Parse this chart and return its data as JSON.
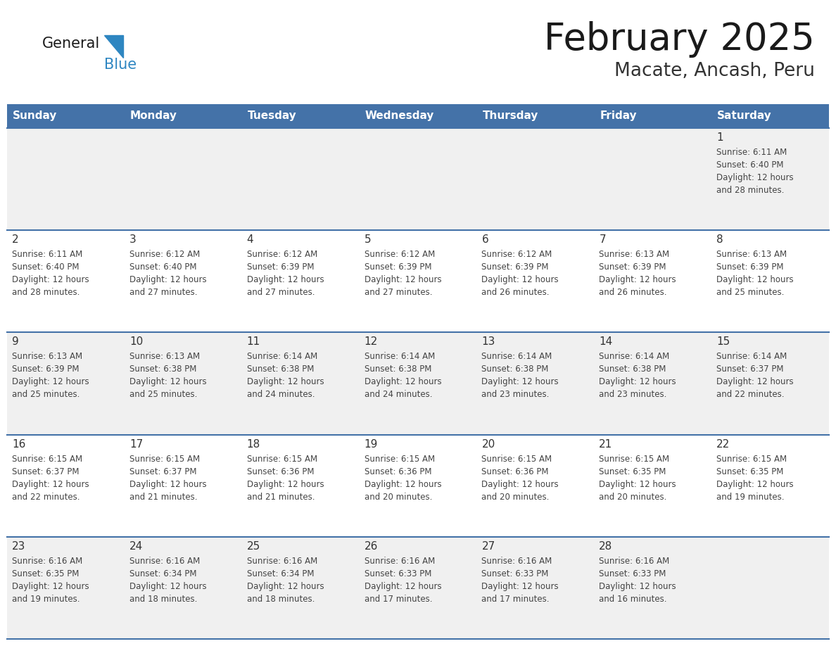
{
  "title": "February 2025",
  "subtitle": "Macate, Ancash, Peru",
  "header_bg": "#4472A8",
  "header_text": "#FFFFFF",
  "cell_bg_odd": "#F0F0F0",
  "cell_bg_even": "#FFFFFF",
  "cell_border": "#4472A8",
  "day_names": [
    "Sunday",
    "Monday",
    "Tuesday",
    "Wednesday",
    "Thursday",
    "Friday",
    "Saturday"
  ],
  "days": [
    {
      "day": 1,
      "col": 6,
      "row": 0,
      "sunrise": "6:11 AM",
      "sunset": "6:40 PM",
      "daylight": "28 minutes."
    },
    {
      "day": 2,
      "col": 0,
      "row": 1,
      "sunrise": "6:11 AM",
      "sunset": "6:40 PM",
      "daylight": "28 minutes."
    },
    {
      "day": 3,
      "col": 1,
      "row": 1,
      "sunrise": "6:12 AM",
      "sunset": "6:40 PM",
      "daylight": "27 minutes."
    },
    {
      "day": 4,
      "col": 2,
      "row": 1,
      "sunrise": "6:12 AM",
      "sunset": "6:39 PM",
      "daylight": "27 minutes."
    },
    {
      "day": 5,
      "col": 3,
      "row": 1,
      "sunrise": "6:12 AM",
      "sunset": "6:39 PM",
      "daylight": "27 minutes."
    },
    {
      "day": 6,
      "col": 4,
      "row": 1,
      "sunrise": "6:12 AM",
      "sunset": "6:39 PM",
      "daylight": "26 minutes."
    },
    {
      "day": 7,
      "col": 5,
      "row": 1,
      "sunrise": "6:13 AM",
      "sunset": "6:39 PM",
      "daylight": "26 minutes."
    },
    {
      "day": 8,
      "col": 6,
      "row": 1,
      "sunrise": "6:13 AM",
      "sunset": "6:39 PM",
      "daylight": "25 minutes."
    },
    {
      "day": 9,
      "col": 0,
      "row": 2,
      "sunrise": "6:13 AM",
      "sunset": "6:39 PM",
      "daylight": "25 minutes."
    },
    {
      "day": 10,
      "col": 1,
      "row": 2,
      "sunrise": "6:13 AM",
      "sunset": "6:38 PM",
      "daylight": "25 minutes."
    },
    {
      "day": 11,
      "col": 2,
      "row": 2,
      "sunrise": "6:14 AM",
      "sunset": "6:38 PM",
      "daylight": "24 minutes."
    },
    {
      "day": 12,
      "col": 3,
      "row": 2,
      "sunrise": "6:14 AM",
      "sunset": "6:38 PM",
      "daylight": "24 minutes."
    },
    {
      "day": 13,
      "col": 4,
      "row": 2,
      "sunrise": "6:14 AM",
      "sunset": "6:38 PM",
      "daylight": "23 minutes."
    },
    {
      "day": 14,
      "col": 5,
      "row": 2,
      "sunrise": "6:14 AM",
      "sunset": "6:38 PM",
      "daylight": "23 minutes."
    },
    {
      "day": 15,
      "col": 6,
      "row": 2,
      "sunrise": "6:14 AM",
      "sunset": "6:37 PM",
      "daylight": "22 minutes."
    },
    {
      "day": 16,
      "col": 0,
      "row": 3,
      "sunrise": "6:15 AM",
      "sunset": "6:37 PM",
      "daylight": "22 minutes."
    },
    {
      "day": 17,
      "col": 1,
      "row": 3,
      "sunrise": "6:15 AM",
      "sunset": "6:37 PM",
      "daylight": "21 minutes."
    },
    {
      "day": 18,
      "col": 2,
      "row": 3,
      "sunrise": "6:15 AM",
      "sunset": "6:36 PM",
      "daylight": "21 minutes."
    },
    {
      "day": 19,
      "col": 3,
      "row": 3,
      "sunrise": "6:15 AM",
      "sunset": "6:36 PM",
      "daylight": "20 minutes."
    },
    {
      "day": 20,
      "col": 4,
      "row": 3,
      "sunrise": "6:15 AM",
      "sunset": "6:36 PM",
      "daylight": "20 minutes."
    },
    {
      "day": 21,
      "col": 5,
      "row": 3,
      "sunrise": "6:15 AM",
      "sunset": "6:35 PM",
      "daylight": "20 minutes."
    },
    {
      "day": 22,
      "col": 6,
      "row": 3,
      "sunrise": "6:15 AM",
      "sunset": "6:35 PM",
      "daylight": "19 minutes."
    },
    {
      "day": 23,
      "col": 0,
      "row": 4,
      "sunrise": "6:16 AM",
      "sunset": "6:35 PM",
      "daylight": "19 minutes."
    },
    {
      "day": 24,
      "col": 1,
      "row": 4,
      "sunrise": "6:16 AM",
      "sunset": "6:34 PM",
      "daylight": "18 minutes."
    },
    {
      "day": 25,
      "col": 2,
      "row": 4,
      "sunrise": "6:16 AM",
      "sunset": "6:34 PM",
      "daylight": "18 minutes."
    },
    {
      "day": 26,
      "col": 3,
      "row": 4,
      "sunrise": "6:16 AM",
      "sunset": "6:33 PM",
      "daylight": "17 minutes."
    },
    {
      "day": 27,
      "col": 4,
      "row": 4,
      "sunrise": "6:16 AM",
      "sunset": "6:33 PM",
      "daylight": "17 minutes."
    },
    {
      "day": 28,
      "col": 5,
      "row": 4,
      "sunrise": "6:16 AM",
      "sunset": "6:33 PM",
      "daylight": "16 minutes."
    }
  ],
  "num_rows": 5,
  "logo_general_color": "#1a1a1a",
  "logo_blue_color": "#2E86C1",
  "logo_triangle_color": "#2E86C1"
}
